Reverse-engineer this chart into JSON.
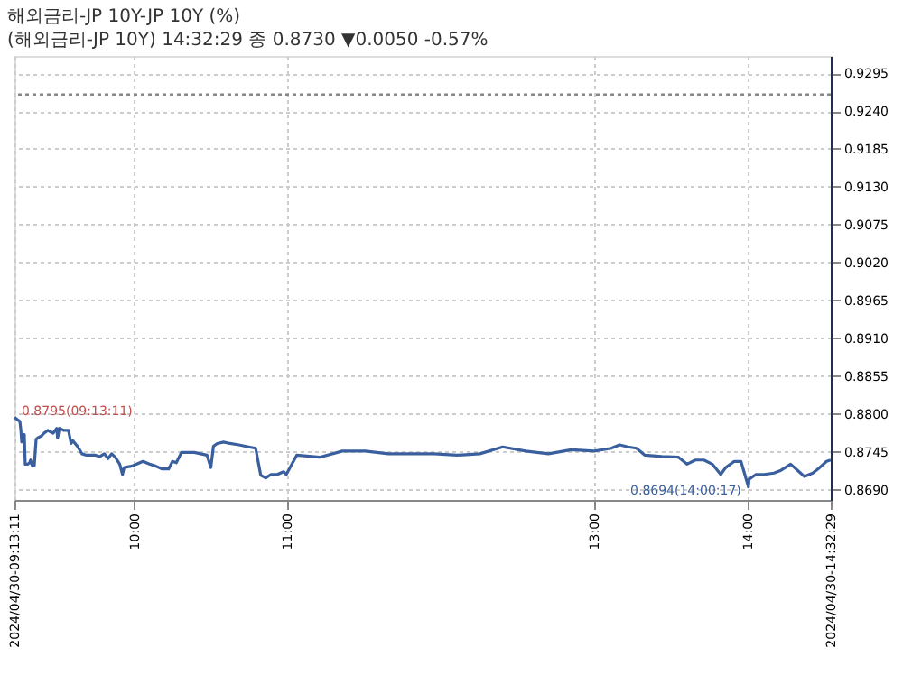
{
  "chart_data": {
    "type": "line",
    "title": "해외금리-JP    10Y-JP 10Y (%)",
    "subtitle": "(해외금리-JP 10Y) 14:32:29 종 0.8730 ▼0.0050 -0.57%",
    "x": [
      9.2197,
      9.243,
      9.255,
      9.261,
      9.267,
      9.278,
      9.284,
      9.29,
      9.308,
      9.319,
      9.325,
      9.337,
      9.349,
      9.361,
      9.378,
      9.396,
      9.413,
      9.437,
      9.454,
      9.472,
      9.495,
      9.501,
      9.513,
      9.542,
      9.572,
      9.589,
      9.601,
      9.63,
      9.66,
      9.689,
      9.718,
      9.748,
      9.777,
      9.806,
      9.83,
      9.853,
      9.877,
      9.906,
      9.924,
      9.935,
      9.982,
      10.017,
      10.058,
      10.1,
      10.142,
      10.183,
      10.225,
      10.25,
      10.275,
      10.308,
      10.392,
      10.475,
      10.5,
      10.517,
      10.542,
      10.583,
      10.625,
      10.683,
      10.725,
      10.792,
      10.825,
      10.858,
      10.892,
      10.933,
      10.975,
      10.992,
      11.06,
      11.209,
      11.358,
      11.507,
      11.657,
      11.806,
      11.955,
      12.104,
      12.254,
      12.403,
      12.552,
      12.701,
      12.851,
      13.0,
      13.11,
      13.165,
      13.22,
      13.275,
      13.33,
      13.44,
      13.549,
      13.604,
      13.659,
      13.714,
      13.769,
      13.824,
      13.857,
      13.912,
      13.956,
      14.0047,
      14.009,
      14.054,
      14.108,
      14.171,
      14.217,
      14.28,
      14.325,
      14.37,
      14.424,
      14.469,
      14.514,
      14.541
    ],
    "series": [
      {
        "color": "#3a5f9e",
        "values": [
          0.8795,
          0.8791,
          0.8789,
          0.8778,
          0.8759,
          0.8768,
          0.877,
          0.8727,
          0.8727,
          0.8729,
          0.8733,
          0.8724,
          0.8725,
          0.8763,
          0.8766,
          0.8768,
          0.8772,
          0.8776,
          0.8774,
          0.8772,
          0.8779,
          0.8765,
          0.8779,
          0.8776,
          0.8776,
          0.8757,
          0.8761,
          0.8753,
          0.8742,
          0.874,
          0.874,
          0.874,
          0.8738,
          0.8742,
          0.8735,
          0.8742,
          0.8737,
          0.8727,
          0.8712,
          0.8722,
          0.8724,
          0.8727,
          0.8731,
          0.8727,
          0.8724,
          0.872,
          0.872,
          0.8731,
          0.8729,
          0.8744,
          0.8744,
          0.874,
          0.8722,
          0.8753,
          0.8757,
          0.8759,
          0.8757,
          0.8755,
          0.8753,
          0.875,
          0.8711,
          0.8707,
          0.8712,
          0.8712,
          0.8716,
          0.8712,
          0.874,
          0.8737,
          0.8746,
          0.8746,
          0.8742,
          0.8742,
          0.8742,
          0.874,
          0.8742,
          0.8752,
          0.8746,
          0.8742,
          0.8748,
          0.8746,
          0.875,
          0.8755,
          0.8752,
          0.875,
          0.874,
          0.8738,
          0.8737,
          0.8727,
          0.8733,
          0.8733,
          0.8727,
          0.8712,
          0.8722,
          0.8731,
          0.8731,
          0.8694,
          0.8705,
          0.8712,
          0.8712,
          0.8714,
          0.8718,
          0.8727,
          0.8718,
          0.8709,
          0.8714,
          0.8722,
          0.8731,
          0.8733
        ]
      }
    ],
    "xlim": [
      9.2197,
      14.5414
    ],
    "xticks": [
      {
        "value": 9.2197,
        "label": "2024/04/30-09:13:11"
      },
      {
        "value": 10,
        "label": "10:00"
      },
      {
        "value": 11,
        "label": "11:00"
      },
      {
        "value": 13,
        "label": "13:00"
      },
      {
        "value": 14,
        "label": "14:00"
      },
      {
        "value": 14.5414,
        "label": "2024/04/30-14:32:29"
      }
    ],
    "ylim": [
      0.8675,
      0.932
    ],
    "yticks": [
      {
        "value": 0.869,
        "label": "0.8690"
      },
      0.8745,
      {
        "value": 0.88,
        "label": "0.8800"
      },
      0.8855,
      {
        "value": 0.891,
        "label": "0.8910"
      },
      0.8965,
      {
        "value": 0.902,
        "label": "0.9020"
      },
      0.9075,
      {
        "value": 0.913,
        "label": "0.9130"
      },
      0.9185,
      {
        "value": 0.924,
        "label": "0.9240"
      },
      0.9295
    ],
    "ref_lines": [
      {
        "axis": "y",
        "value": 0.9264,
        "color": "#888888",
        "line_style": "dotted"
      }
    ],
    "annotations": [
      {
        "text": "0.8795(09:13:11)",
        "x": 9.2197,
        "y": 0.8795
      },
      {
        "text": "0.8694(14:00:17)",
        "x": 14.0047,
        "y": 0.8694
      }
    ],
    "grid": true,
    "legend": false,
    "line_style": "solid",
    "marker": "none"
  }
}
